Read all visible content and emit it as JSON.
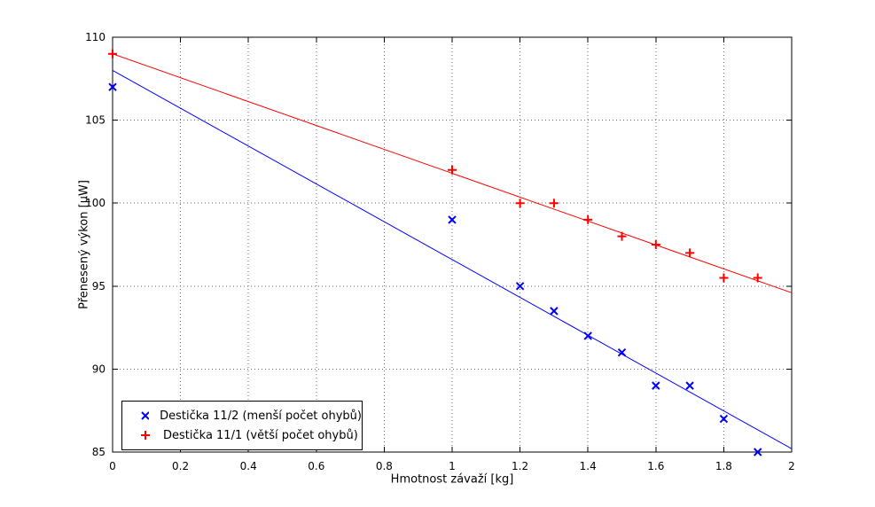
{
  "figure": {
    "background": "#ffffff",
    "plot_background": "#ffffff",
    "axes_color": "#000000",
    "grid_color": "#6b6b6b"
  },
  "chart_data": {
    "type": "scatter",
    "title": "",
    "xlabel": "Hmotnost závaží [kg]",
    "ylabel": "Přenesený výkon [µW]",
    "xlim": [
      0,
      2
    ],
    "ylim": [
      85,
      110
    ],
    "xticks": [
      0,
      0.2,
      0.4,
      0.6,
      0.8,
      1,
      1.2,
      1.4,
      1.6,
      1.8,
      2
    ],
    "xtick_labels": [
      "0",
      "0.2",
      "0.4",
      "0.6",
      "0.8",
      "1",
      "1.2",
      "1.4",
      "1.6",
      "1.8",
      "2"
    ],
    "yticks": [
      85,
      90,
      95,
      100,
      105,
      110
    ],
    "ytick_labels": [
      "85",
      "90",
      "95",
      "100",
      "105",
      "110"
    ],
    "grid": true,
    "legend_position": "bottom-left",
    "series": [
      {
        "name": "Destička 11/2 (menší počet ohybů)",
        "marker": "x",
        "color": "#0000ff",
        "x": [
          0,
          1.0,
          1.2,
          1.3,
          1.4,
          1.5,
          1.6,
          1.7,
          1.8,
          1.9
        ],
        "y": [
          107,
          99,
          95,
          93.5,
          92,
          91,
          89,
          89,
          87,
          85
        ]
      },
      {
        "name": "Destička 11/1 (větší počet ohybů)",
        "marker": "+",
        "color": "#ff0000",
        "x": [
          0,
          1.0,
          1.2,
          1.3,
          1.4,
          1.5,
          1.6,
          1.7,
          1.8,
          1.9
        ],
        "y": [
          109,
          102,
          100,
          100,
          99,
          98,
          97.5,
          97,
          95.5,
          95.5
        ]
      }
    ],
    "fit_lines": [
      {
        "series": "Destička 11/2 (menší počet ohybů)",
        "color": "#0000ff",
        "x": [
          0,
          2
        ],
        "y": [
          108,
          85.2
        ]
      },
      {
        "series": "Destička 11/1 (větší počet ohybů)",
        "color": "#ff0000",
        "x": [
          0,
          2
        ],
        "y": [
          109,
          94.6
        ]
      }
    ]
  }
}
